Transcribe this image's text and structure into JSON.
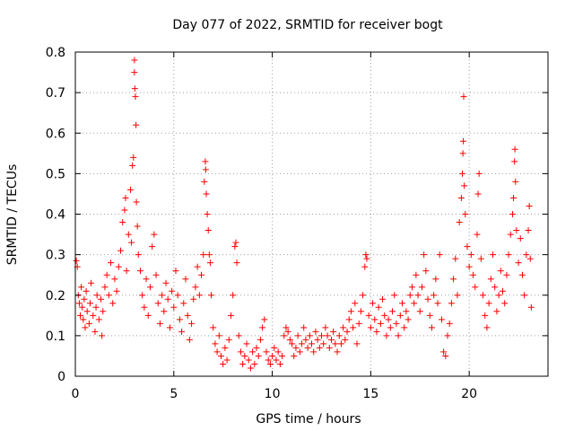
{
  "chart_data": {
    "type": "scatter",
    "title": "Day 077 of 2022, SRMTID for receiver bogt",
    "xlabel": "GPS time / hours",
    "ylabel": "SRMTID / TECUs",
    "xlim": [
      0,
      24
    ],
    "ylim": [
      0,
      0.8
    ],
    "xticks": [
      0,
      5,
      10,
      15,
      20
    ],
    "xtick_labels": [
      "0",
      "5",
      "10",
      "15",
      "20"
    ],
    "yticks": [
      0,
      0.1,
      0.2,
      0.3,
      0.4,
      0.5,
      0.6,
      0.7,
      0.8
    ],
    "ytick_labels": [
      "0",
      "0.1",
      "0.2",
      "0.3",
      "0.4",
      "0.5",
      "0.6",
      "0.7",
      "0.8"
    ],
    "grid": true,
    "marker": "+",
    "color": "#ff0000",
    "series": [
      {
        "name": "SRMTID",
        "points": [
          [
            0.05,
            0.285
          ],
          [
            0.1,
            0.27
          ],
          [
            0.15,
            0.2
          ],
          [
            0.2,
            0.18
          ],
          [
            0.25,
            0.15
          ],
          [
            0.3,
            0.22
          ],
          [
            0.35,
            0.17
          ],
          [
            0.4,
            0.14
          ],
          [
            0.45,
            0.19
          ],
          [
            0.5,
            0.12
          ],
          [
            0.55,
            0.21
          ],
          [
            0.6,
            0.16
          ],
          [
            0.7,
            0.13
          ],
          [
            0.75,
            0.18
          ],
          [
            0.8,
            0.23
          ],
          [
            0.9,
            0.15
          ],
          [
            1.0,
            0.11
          ],
          [
            1.05,
            0.17
          ],
          [
            1.1,
            0.2
          ],
          [
            1.2,
            0.14
          ],
          [
            1.3,
            0.19
          ],
          [
            1.35,
            0.1
          ],
          [
            1.4,
            0.16
          ],
          [
            1.5,
            0.22
          ],
          [
            1.6,
            0.25
          ],
          [
            1.7,
            0.2
          ],
          [
            1.8,
            0.28
          ],
          [
            1.9,
            0.18
          ],
          [
            2.0,
            0.24
          ],
          [
            2.1,
            0.21
          ],
          [
            2.2,
            0.27
          ],
          [
            2.3,
            0.31
          ],
          [
            2.4,
            0.38
          ],
          [
            2.5,
            0.41
          ],
          [
            2.55,
            0.44
          ],
          [
            2.6,
            0.26
          ],
          [
            2.7,
            0.35
          ],
          [
            2.8,
            0.46
          ],
          [
            2.85,
            0.33
          ],
          [
            2.9,
            0.52
          ],
          [
            2.95,
            0.54
          ],
          [
            3.0,
            0.78
          ],
          [
            3.0,
            0.75
          ],
          [
            3.02,
            0.71
          ],
          [
            3.05,
            0.69
          ],
          [
            3.08,
            0.62
          ],
          [
            3.1,
            0.43
          ],
          [
            3.15,
            0.37
          ],
          [
            3.2,
            0.3
          ],
          [
            3.3,
            0.26
          ],
          [
            3.4,
            0.2
          ],
          [
            3.5,
            0.17
          ],
          [
            3.6,
            0.24
          ],
          [
            3.7,
            0.15
          ],
          [
            3.8,
            0.22
          ],
          [
            3.9,
            0.32
          ],
          [
            4.0,
            0.35
          ],
          [
            4.1,
            0.25
          ],
          [
            4.2,
            0.18
          ],
          [
            4.3,
            0.13
          ],
          [
            4.4,
            0.2
          ],
          [
            4.5,
            0.16
          ],
          [
            4.6,
            0.23
          ],
          [
            4.7,
            0.19
          ],
          [
            4.8,
            0.12
          ],
          [
            4.9,
            0.21
          ],
          [
            5.0,
            0.17
          ],
          [
            5.1,
            0.26
          ],
          [
            5.2,
            0.2
          ],
          [
            5.3,
            0.14
          ],
          [
            5.4,
            0.11
          ],
          [
            5.5,
            0.18
          ],
          [
            5.6,
            0.24
          ],
          [
            5.7,
            0.15
          ],
          [
            5.8,
            0.09
          ],
          [
            5.9,
            0.13
          ],
          [
            6.0,
            0.19
          ],
          [
            6.1,
            0.22
          ],
          [
            6.2,
            0.27
          ],
          [
            6.3,
            0.2
          ],
          [
            6.4,
            0.25
          ],
          [
            6.5,
            0.3
          ],
          [
            6.55,
            0.48
          ],
          [
            6.6,
            0.53
          ],
          [
            6.62,
            0.51
          ],
          [
            6.65,
            0.45
          ],
          [
            6.7,
            0.4
          ],
          [
            6.75,
            0.36
          ],
          [
            6.8,
            0.3
          ],
          [
            6.85,
            0.28
          ],
          [
            6.9,
            0.2
          ],
          [
            7.0,
            0.12
          ],
          [
            7.1,
            0.08
          ],
          [
            7.2,
            0.06
          ],
          [
            7.3,
            0.1
          ],
          [
            7.4,
            0.05
          ],
          [
            7.5,
            0.03
          ],
          [
            7.6,
            0.07
          ],
          [
            7.7,
            0.04
          ],
          [
            7.8,
            0.09
          ],
          [
            7.9,
            0.15
          ],
          [
            8.0,
            0.2
          ],
          [
            8.1,
            0.32
          ],
          [
            8.15,
            0.33
          ],
          [
            8.2,
            0.28
          ],
          [
            8.3,
            0.1
          ],
          [
            8.4,
            0.06
          ],
          [
            8.5,
            0.03
          ],
          [
            8.6,
            0.05
          ],
          [
            8.7,
            0.08
          ],
          [
            8.8,
            0.04
          ],
          [
            8.9,
            0.02
          ],
          [
            9.0,
            0.06
          ],
          [
            9.1,
            0.03
          ],
          [
            9.2,
            0.07
          ],
          [
            9.3,
            0.05
          ],
          [
            9.4,
            0.09
          ],
          [
            9.5,
            0.12
          ],
          [
            9.6,
            0.14
          ],
          [
            9.7,
            0.06
          ],
          [
            9.8,
            0.04
          ],
          [
            9.9,
            0.03
          ],
          [
            10.0,
            0.05
          ],
          [
            10.1,
            0.07
          ],
          [
            10.2,
            0.04
          ],
          [
            10.3,
            0.06
          ],
          [
            10.4,
            0.03
          ],
          [
            10.5,
            0.05
          ],
          [
            10.6,
            0.1
          ],
          [
            10.7,
            0.12
          ],
          [
            10.8,
            0.11
          ],
          [
            10.9,
            0.09
          ],
          [
            11.0,
            0.08
          ],
          [
            11.1,
            0.05
          ],
          [
            11.2,
            0.07
          ],
          [
            11.3,
            0.1
          ],
          [
            11.4,
            0.06
          ],
          [
            11.5,
            0.08
          ],
          [
            11.6,
            0.12
          ],
          [
            11.7,
            0.09
          ],
          [
            11.8,
            0.07
          ],
          [
            11.9,
            0.1
          ],
          [
            12.0,
            0.08
          ],
          [
            12.1,
            0.06
          ],
          [
            12.2,
            0.11
          ],
          [
            12.3,
            0.09
          ],
          [
            12.4,
            0.07
          ],
          [
            12.5,
            0.1
          ],
          [
            12.6,
            0.08
          ],
          [
            12.7,
            0.12
          ],
          [
            12.8,
            0.1
          ],
          [
            12.9,
            0.07
          ],
          [
            13.0,
            0.09
          ],
          [
            13.1,
            0.11
          ],
          [
            13.2,
            0.08
          ],
          [
            13.3,
            0.06
          ],
          [
            13.4,
            0.1
          ],
          [
            13.5,
            0.08
          ],
          [
            13.6,
            0.12
          ],
          [
            13.7,
            0.09
          ],
          [
            13.8,
            0.11
          ],
          [
            13.9,
            0.14
          ],
          [
            14.0,
            0.16
          ],
          [
            14.1,
            0.12
          ],
          [
            14.2,
            0.18
          ],
          [
            14.3,
            0.08
          ],
          [
            14.4,
            0.13
          ],
          [
            14.5,
            0.16
          ],
          [
            14.6,
            0.2
          ],
          [
            14.7,
            0.27
          ],
          [
            14.75,
            0.3
          ],
          [
            14.8,
            0.29
          ],
          [
            14.9,
            0.15
          ],
          [
            15.0,
            0.12
          ],
          [
            15.1,
            0.18
          ],
          [
            15.2,
            0.14
          ],
          [
            15.3,
            0.11
          ],
          [
            15.4,
            0.17
          ],
          [
            15.5,
            0.13
          ],
          [
            15.6,
            0.19
          ],
          [
            15.7,
            0.15
          ],
          [
            15.8,
            0.1
          ],
          [
            15.9,
            0.14
          ],
          [
            16.0,
            0.12
          ],
          [
            16.1,
            0.16
          ],
          [
            16.2,
            0.2
          ],
          [
            16.3,
            0.13
          ],
          [
            16.4,
            0.1
          ],
          [
            16.5,
            0.15
          ],
          [
            16.6,
            0.18
          ],
          [
            16.7,
            0.12
          ],
          [
            16.8,
            0.16
          ],
          [
            16.9,
            0.14
          ],
          [
            17.0,
            0.2
          ],
          [
            17.1,
            0.22
          ],
          [
            17.2,
            0.18
          ],
          [
            17.3,
            0.25
          ],
          [
            17.4,
            0.2
          ],
          [
            17.5,
            0.16
          ],
          [
            17.6,
            0.22
          ],
          [
            17.7,
            0.3
          ],
          [
            17.8,
            0.26
          ],
          [
            17.9,
            0.19
          ],
          [
            18.0,
            0.15
          ],
          [
            18.1,
            0.12
          ],
          [
            18.2,
            0.2
          ],
          [
            18.3,
            0.24
          ],
          [
            18.4,
            0.18
          ],
          [
            18.5,
            0.3
          ],
          [
            18.6,
            0.14
          ],
          [
            18.7,
            0.06
          ],
          [
            18.8,
            0.05
          ],
          [
            18.9,
            0.1
          ],
          [
            19.0,
            0.13
          ],
          [
            19.1,
            0.18
          ],
          [
            19.2,
            0.24
          ],
          [
            19.3,
            0.29
          ],
          [
            19.4,
            0.2
          ],
          [
            19.5,
            0.38
          ],
          [
            19.6,
            0.44
          ],
          [
            19.65,
            0.5
          ],
          [
            19.68,
            0.55
          ],
          [
            19.7,
            0.58
          ],
          [
            19.72,
            0.69
          ],
          [
            19.75,
            0.47
          ],
          [
            19.8,
            0.4
          ],
          [
            19.9,
            0.32
          ],
          [
            20.0,
            0.27
          ],
          [
            20.1,
            0.3
          ],
          [
            20.2,
            0.25
          ],
          [
            20.3,
            0.22
          ],
          [
            20.4,
            0.35
          ],
          [
            20.45,
            0.45
          ],
          [
            20.5,
            0.5
          ],
          [
            20.6,
            0.29
          ],
          [
            20.7,
            0.2
          ],
          [
            20.8,
            0.15
          ],
          [
            20.9,
            0.12
          ],
          [
            21.0,
            0.18
          ],
          [
            21.1,
            0.24
          ],
          [
            21.2,
            0.3
          ],
          [
            21.3,
            0.22
          ],
          [
            21.4,
            0.16
          ],
          [
            21.5,
            0.2
          ],
          [
            21.6,
            0.26
          ],
          [
            21.7,
            0.21
          ],
          [
            21.8,
            0.18
          ],
          [
            21.9,
            0.25
          ],
          [
            22.0,
            0.3
          ],
          [
            22.1,
            0.35
          ],
          [
            22.2,
            0.4
          ],
          [
            22.25,
            0.44
          ],
          [
            22.3,
            0.53
          ],
          [
            22.32,
            0.56
          ],
          [
            22.35,
            0.48
          ],
          [
            22.4,
            0.36
          ],
          [
            22.5,
            0.28
          ],
          [
            22.6,
            0.34
          ],
          [
            22.7,
            0.25
          ],
          [
            22.8,
            0.2
          ],
          [
            22.9,
            0.3
          ],
          [
            23.0,
            0.36
          ],
          [
            23.05,
            0.42
          ],
          [
            23.1,
            0.29
          ],
          [
            23.15,
            0.17
          ]
        ]
      }
    ]
  }
}
